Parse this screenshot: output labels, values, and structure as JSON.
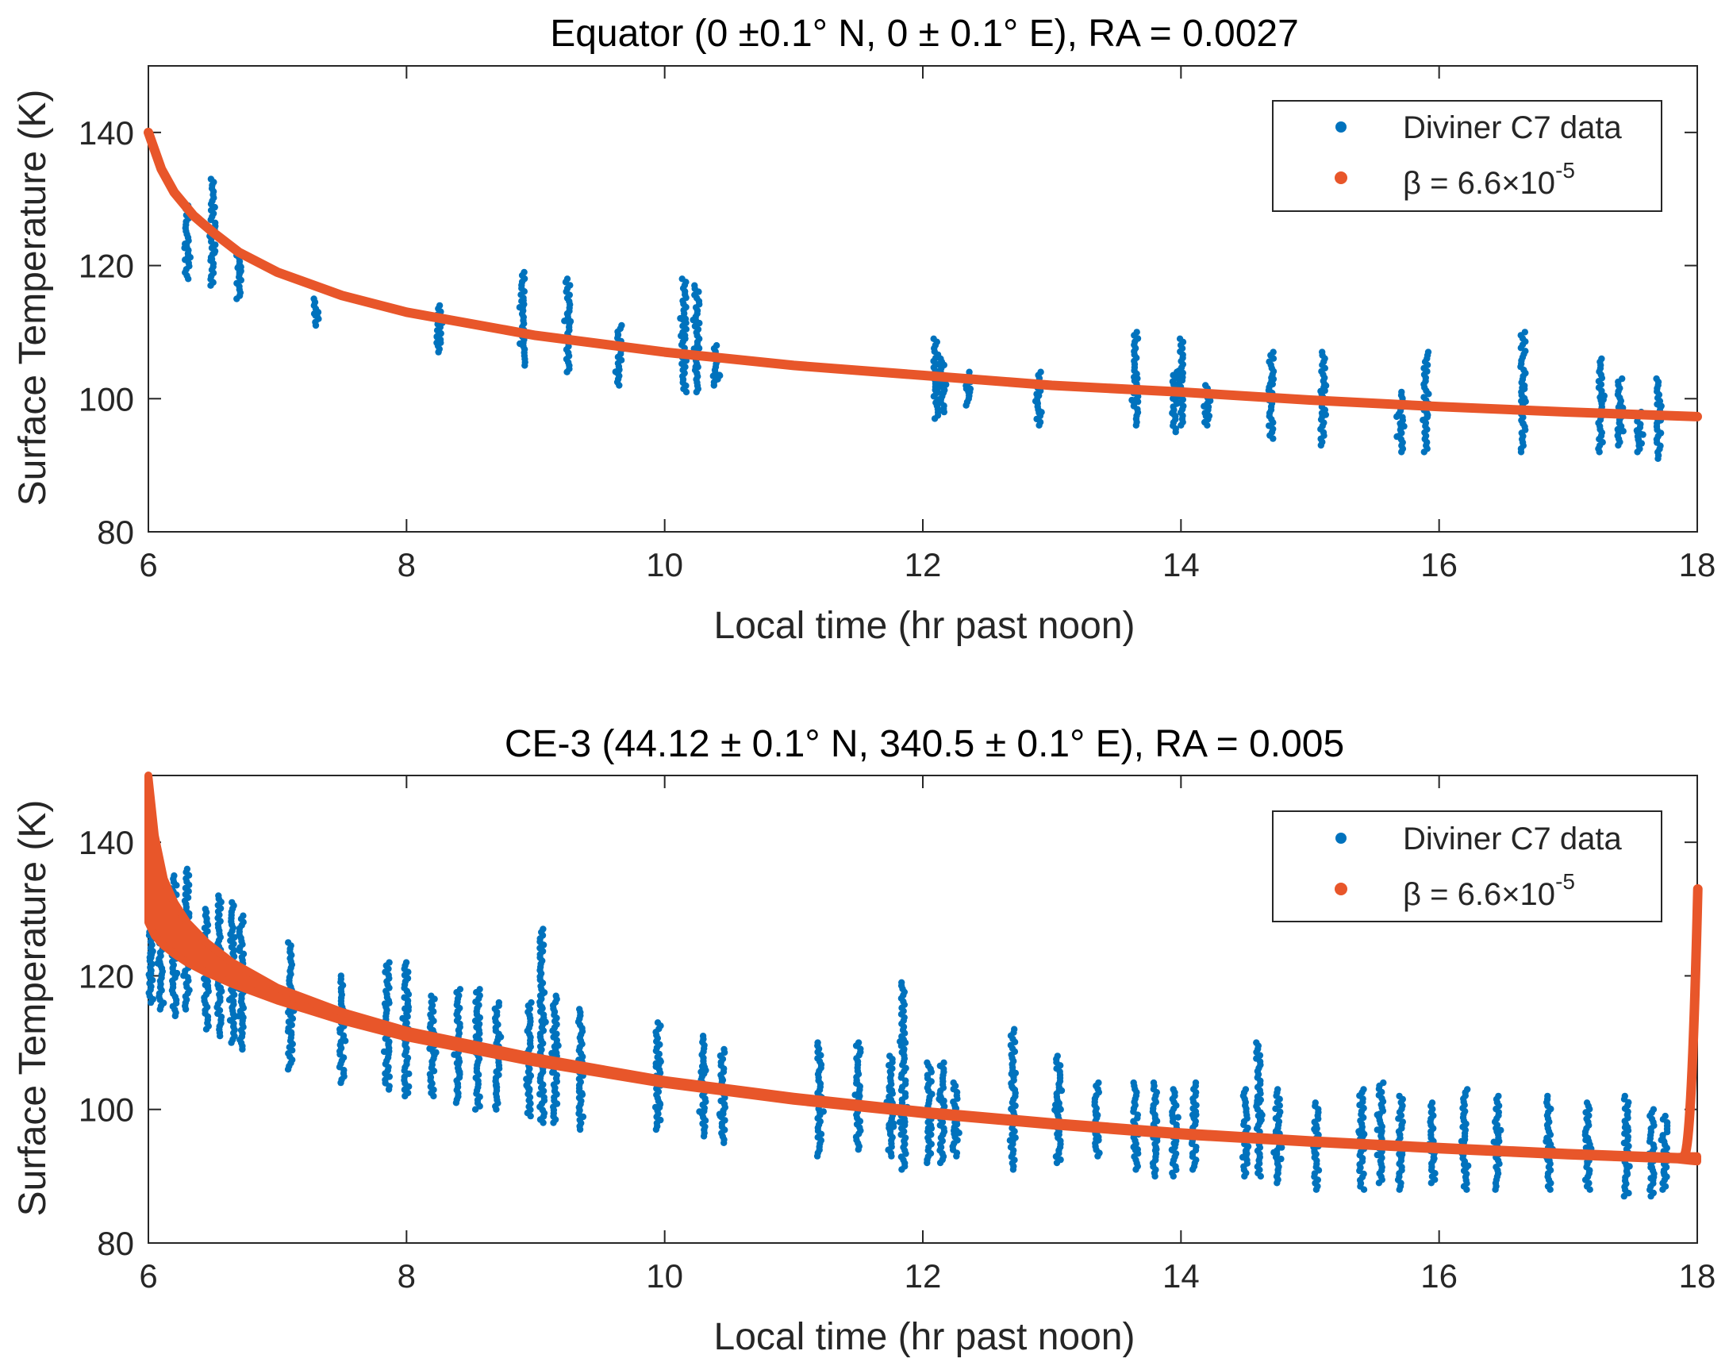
{
  "colors": {
    "data": "#0072BD",
    "fit": "#E8562A",
    "axis": "#262626"
  },
  "chart_data": [
    {
      "type": "scatter",
      "title": "Equator (0 ±0.1° N, 0 ± 0.1° E), RA = 0.0027",
      "xlabel": "Local time (hr past noon)",
      "ylabel": "Surface Temperature (K)",
      "xlim": [
        6,
        18
      ],
      "ylim": [
        80,
        150
      ],
      "xticks": [
        "6",
        "8",
        "10",
        "12",
        "14",
        "16",
        "18"
      ],
      "yticks": [
        "80",
        "100",
        "120",
        "140"
      ],
      "legend_position": "top-right",
      "series": [
        {
          "name": "Diviner C7 data",
          "style": "scatter",
          "columns": [
            {
              "x": 6.3,
              "ymin": 118,
              "ymax": 129
            },
            {
              "x": 6.5,
              "ymin": 117,
              "ymax": 133
            },
            {
              "x": 6.7,
              "ymin": 115,
              "ymax": 122
            },
            {
              "x": 7.3,
              "ymin": 111,
              "ymax": 115
            },
            {
              "x": 8.25,
              "ymin": 107,
              "ymax": 114
            },
            {
              "x": 8.9,
              "ymin": 105,
              "ymax": 119
            },
            {
              "x": 9.25,
              "ymin": 104,
              "ymax": 118
            },
            {
              "x": 9.65,
              "ymin": 102,
              "ymax": 111
            },
            {
              "x": 10.15,
              "ymin": 101,
              "ymax": 118
            },
            {
              "x": 10.25,
              "ymin": 101,
              "ymax": 117
            },
            {
              "x": 10.4,
              "ymin": 102,
              "ymax": 108
            },
            {
              "x": 12.1,
              "ymin": 97,
              "ymax": 109
            },
            {
              "x": 12.15,
              "ymin": 98,
              "ymax": 106
            },
            {
              "x": 12.35,
              "ymin": 99,
              "ymax": 104
            },
            {
              "x": 12.9,
              "ymin": 96,
              "ymax": 104
            },
            {
              "x": 13.65,
              "ymin": 96,
              "ymax": 110
            },
            {
              "x": 13.95,
              "ymin": 95,
              "ymax": 104
            },
            {
              "x": 14.0,
              "ymin": 96,
              "ymax": 109
            },
            {
              "x": 14.2,
              "ymin": 96,
              "ymax": 102
            },
            {
              "x": 14.7,
              "ymin": 94,
              "ymax": 107
            },
            {
              "x": 15.1,
              "ymin": 93,
              "ymax": 107
            },
            {
              "x": 15.7,
              "ymin": 92,
              "ymax": 101
            },
            {
              "x": 15.9,
              "ymin": 92,
              "ymax": 107
            },
            {
              "x": 16.65,
              "ymin": 92,
              "ymax": 110
            },
            {
              "x": 17.25,
              "ymin": 92,
              "ymax": 106
            },
            {
              "x": 17.4,
              "ymin": 93,
              "ymax": 103
            },
            {
              "x": 17.55,
              "ymin": 92,
              "ymax": 98
            },
            {
              "x": 17.7,
              "ymin": 91,
              "ymax": 103
            }
          ]
        },
        {
          "name": "β = 6.6×10",
          "name_exponent": "-5",
          "style": "thick-line",
          "x": [
            6.0,
            6.1,
            6.2,
            6.35,
            6.5,
            6.7,
            7.0,
            7.5,
            8.0,
            9.0,
            10.0,
            11.0,
            12.0,
            13.0,
            14.0,
            15.0,
            16.0,
            17.0,
            18.0
          ],
          "y": [
            140,
            134.5,
            131,
            127.5,
            125,
            122,
            119,
            115.5,
            113,
            109.5,
            107,
            105,
            103.5,
            102,
            101,
            99.8,
            98.8,
            98,
            97.3
          ]
        }
      ]
    },
    {
      "type": "scatter",
      "title": "CE-3 (44.12 ± 0.1° N, 340.5 ± 0.1° E), RA = 0.005",
      "xlabel": "Local time (hr past noon)",
      "ylabel": "Surface Temperature (K)",
      "xlim": [
        6,
        18
      ],
      "ylim": [
        80,
        150
      ],
      "xticks": [
        "6",
        "8",
        "10",
        "12",
        "14",
        "16",
        "18"
      ],
      "yticks": [
        "80",
        "100",
        "120",
        "140"
      ],
      "legend_position": "top-right",
      "series": [
        {
          "name": "Diviner C7 data",
          "style": "scatter",
          "columns": [
            {
              "x": 6.02,
              "ymin": 116,
              "ymax": 128
            },
            {
              "x": 6.1,
              "ymin": 115,
              "ymax": 131
            },
            {
              "x": 6.2,
              "ymin": 114,
              "ymax": 135
            },
            {
              "x": 6.3,
              "ymin": 115,
              "ymax": 136
            },
            {
              "x": 6.45,
              "ymin": 112,
              "ymax": 130
            },
            {
              "x": 6.55,
              "ymin": 111,
              "ymax": 132
            },
            {
              "x": 6.65,
              "ymin": 110,
              "ymax": 131
            },
            {
              "x": 6.72,
              "ymin": 109,
              "ymax": 129
            },
            {
              "x": 7.1,
              "ymin": 106,
              "ymax": 125
            },
            {
              "x": 7.5,
              "ymin": 104,
              "ymax": 120
            },
            {
              "x": 7.85,
              "ymin": 103,
              "ymax": 122
            },
            {
              "x": 8.0,
              "ymin": 102,
              "ymax": 122
            },
            {
              "x": 8.2,
              "ymin": 102,
              "ymax": 117
            },
            {
              "x": 8.4,
              "ymin": 101,
              "ymax": 118
            },
            {
              "x": 8.55,
              "ymin": 100,
              "ymax": 118
            },
            {
              "x": 8.7,
              "ymin": 100,
              "ymax": 116
            },
            {
              "x": 8.95,
              "ymin": 99,
              "ymax": 116
            },
            {
              "x": 9.05,
              "ymin": 98,
              "ymax": 127
            },
            {
              "x": 9.15,
              "ymin": 98,
              "ymax": 117
            },
            {
              "x": 9.35,
              "ymin": 97,
              "ymax": 115
            },
            {
              "x": 9.95,
              "ymin": 97,
              "ymax": 113
            },
            {
              "x": 10.3,
              "ymin": 96,
              "ymax": 111
            },
            {
              "x": 10.45,
              "ymin": 95,
              "ymax": 109
            },
            {
              "x": 11.2,
              "ymin": 93,
              "ymax": 110
            },
            {
              "x": 11.5,
              "ymin": 94,
              "ymax": 110
            },
            {
              "x": 11.75,
              "ymin": 93,
              "ymax": 108
            },
            {
              "x": 11.85,
              "ymin": 91,
              "ymax": 119
            },
            {
              "x": 12.05,
              "ymin": 92,
              "ymax": 107
            },
            {
              "x": 12.15,
              "ymin": 92,
              "ymax": 107
            },
            {
              "x": 12.25,
              "ymin": 93,
              "ymax": 104
            },
            {
              "x": 12.7,
              "ymin": 91,
              "ymax": 112
            },
            {
              "x": 13.05,
              "ymin": 92,
              "ymax": 108
            },
            {
              "x": 13.35,
              "ymin": 93,
              "ymax": 104
            },
            {
              "x": 13.65,
              "ymin": 91,
              "ymax": 104
            },
            {
              "x": 13.8,
              "ymin": 90,
              "ymax": 104
            },
            {
              "x": 13.95,
              "ymin": 90,
              "ymax": 103
            },
            {
              "x": 14.1,
              "ymin": 91,
              "ymax": 104
            },
            {
              "x": 14.5,
              "ymin": 90,
              "ymax": 103
            },
            {
              "x": 14.6,
              "ymin": 90,
              "ymax": 110
            },
            {
              "x": 14.75,
              "ymin": 89,
              "ymax": 103
            },
            {
              "x": 15.05,
              "ymin": 88,
              "ymax": 101
            },
            {
              "x": 15.4,
              "ymin": 88,
              "ymax": 103
            },
            {
              "x": 15.55,
              "ymin": 89,
              "ymax": 104
            },
            {
              "x": 15.7,
              "ymin": 88,
              "ymax": 102
            },
            {
              "x": 15.95,
              "ymin": 89,
              "ymax": 101
            },
            {
              "x": 16.2,
              "ymin": 88,
              "ymax": 103
            },
            {
              "x": 16.45,
              "ymin": 88,
              "ymax": 102
            },
            {
              "x": 16.85,
              "ymin": 88,
              "ymax": 102
            },
            {
              "x": 17.15,
              "ymin": 88,
              "ymax": 101
            },
            {
              "x": 17.45,
              "ymin": 87,
              "ymax": 102
            },
            {
              "x": 17.65,
              "ymin": 87,
              "ymax": 100
            },
            {
              "x": 17.75,
              "ymin": 88,
              "ymax": 99
            }
          ]
        },
        {
          "name": "β = 6.6×10",
          "name_exponent": "-5",
          "style": "thick-band",
          "x": [
            6.0,
            6.05,
            6.12,
            6.2,
            6.3,
            6.45,
            6.65,
            7.0,
            7.5,
            8.0,
            9.0,
            10.0,
            11.0,
            12.0,
            13.0,
            14.0,
            15.0,
            16.0,
            17.0,
            17.85,
            17.95,
            18.0
          ],
          "y": [
            128,
            126,
            124.5,
            123.3,
            122,
            120.5,
            118.8,
            116.3,
            113.3,
            110.8,
            107,
            103.8,
            101.3,
            99.3,
            97.6,
            96.1,
            95,
            94,
            93.1,
            92.5,
            92.3,
            92.2
          ],
          "y_upper": [
            150,
            141,
            134.5,
            131,
            128,
            125,
            122,
            118.2,
            114.6,
            111.8,
            107.8,
            104.4,
            101.9,
            99.8,
            98.1,
            96.6,
            95.4,
            94.4,
            93.5,
            92.9,
            93,
            93
          ],
          "spike": [
            {
              "x": 17.98,
              "ymin": 93,
              "ymax": 133
            }
          ]
        }
      ]
    }
  ]
}
